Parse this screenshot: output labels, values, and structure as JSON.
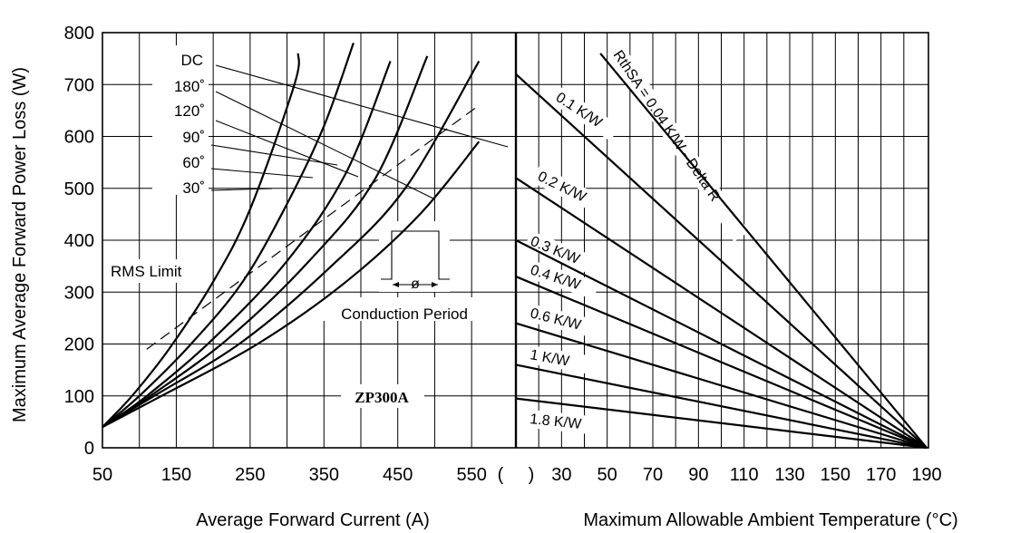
{
  "chart_data": [
    {
      "type": "line",
      "xlabel": "Average Forward Current (A)",
      "ylabel": "Maximum Average Forward Power Loss (W)",
      "xlim": [
        50,
        610
      ],
      "ylim": [
        0,
        800
      ],
      "x_ticks": [
        "50",
        "150",
        "250",
        "350",
        "450",
        "550",
        "("
      ],
      "y_ticks": [
        "0",
        "100",
        "200",
        "300",
        "400",
        "500",
        "600",
        "700",
        "800"
      ],
      "grid": true,
      "series": [
        {
          "name": "30°",
          "points": [
            [
              50,
              40
            ],
            [
              90,
              100
            ],
            [
              140,
              190
            ],
            [
              200,
              320
            ],
            [
              250,
              460
            ],
            [
              310,
              700
            ],
            [
              315,
              760
            ]
          ]
        },
        {
          "name": "60°",
          "points": [
            [
              50,
              40
            ],
            [
              100,
              100
            ],
            [
              170,
              200
            ],
            [
              240,
              320
            ],
            [
              300,
              470
            ],
            [
              350,
              620
            ],
            [
              390,
              780
            ]
          ]
        },
        {
          "name": "90°",
          "points": [
            [
              50,
              40
            ],
            [
              110,
              100
            ],
            [
              200,
              210
            ],
            [
              300,
              360
            ],
            [
              380,
              530
            ],
            [
              440,
              745
            ]
          ]
        },
        {
          "name": "120°",
          "points": [
            [
              50,
              40
            ],
            [
              115,
              100
            ],
            [
              220,
              210
            ],
            [
              330,
              360
            ],
            [
              420,
              520
            ],
            [
              490,
              755
            ]
          ]
        },
        {
          "name": "180°",
          "points": [
            [
              50,
              40
            ],
            [
              120,
              100
            ],
            [
              240,
              205
            ],
            [
              360,
              350
            ],
            [
              460,
              500
            ],
            [
              560,
              745
            ]
          ]
        },
        {
          "name": "DC",
          "points": [
            [
              50,
              40
            ],
            [
              130,
              100
            ],
            [
              260,
              200
            ],
            [
              380,
              320
            ],
            [
              480,
              450
            ],
            [
              560,
              590
            ]
          ]
        },
        {
          "name": "RMS Limit",
          "dashed": true,
          "points": [
            [
              110,
              190
            ],
            [
              560,
              660
            ]
          ]
        }
      ],
      "annotations": [
        "RMS Limit",
        "Conduction Period",
        "ZP300A",
        "ø",
        "DC",
        "180˚",
        "120˚",
        "90˚",
        "60˚",
        "30˚"
      ]
    },
    {
      "type": "line",
      "xlabel": "Maximum Allowable Ambient Temperature (°C)",
      "ylabel": "",
      "xlim": [
        10,
        190
      ],
      "ylim": [
        0,
        800
      ],
      "x_ticks": [
        ")",
        "30",
        "50",
        "70",
        "90",
        "110",
        "130",
        "150",
        "170",
        "190"
      ],
      "grid": true,
      "series": [
        {
          "name": "RthSA = 0.04 K/W - Delta R",
          "points": [
            [
              47,
              760
            ],
            [
              190,
              0
            ]
          ]
        },
        {
          "name": "0.1 K/W",
          "points": [
            [
              10,
              720
            ],
            [
              190,
              0
            ]
          ]
        },
        {
          "name": "0.2 K/W",
          "points": [
            [
              10,
              520
            ],
            [
              190,
              0
            ]
          ]
        },
        {
          "name": "0.3 K/W",
          "points": [
            [
              10,
              400
            ],
            [
              190,
              0
            ]
          ]
        },
        {
          "name": "0.4 K/W",
          "points": [
            [
              10,
              330
            ],
            [
              190,
              0
            ]
          ]
        },
        {
          "name": "0.6 K/W",
          "points": [
            [
              10,
              240
            ],
            [
              190,
              0
            ]
          ]
        },
        {
          "name": "1 K/W",
          "points": [
            [
              10,
              160
            ],
            [
              190,
              0
            ]
          ]
        },
        {
          "name": "1.8 K/W",
          "points": [
            [
              10,
              95
            ],
            [
              190,
              0
            ]
          ]
        }
      ]
    }
  ]
}
